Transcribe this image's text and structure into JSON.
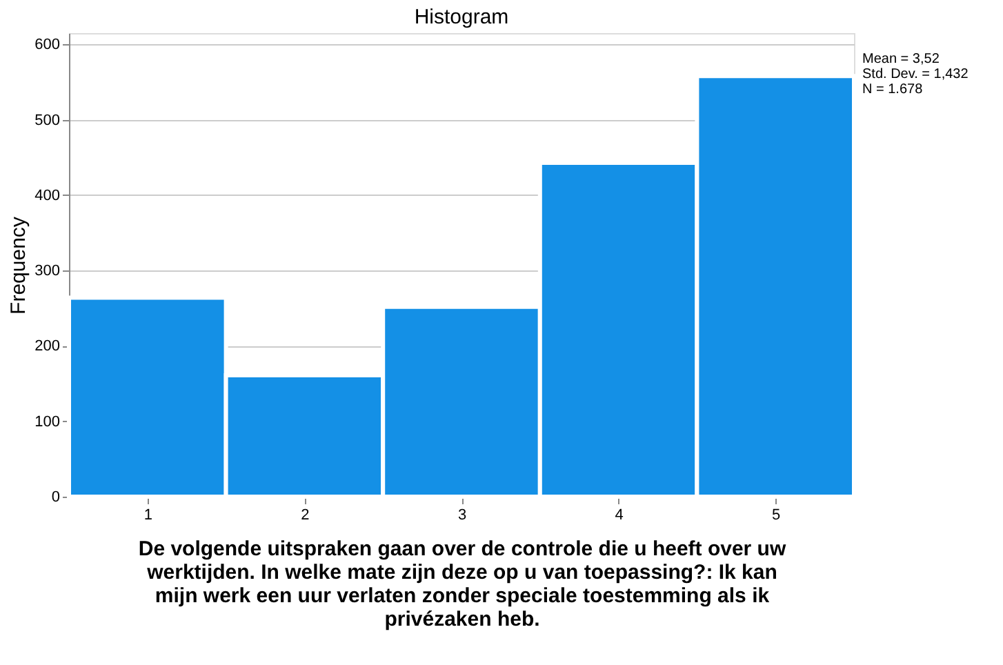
{
  "chart_data": {
    "type": "histogram",
    "title": "Histogram",
    "xlabel": "De volgende uitspraken gaan over de controle die u heeft over uw werktijden. In welke mate zijn deze op u van toepassing?: Ik kan mijn werk een uur verlaten zonder speciale toestemming als ik privézaken heb.",
    "ylabel": "Frequency",
    "bins": [
      0.5,
      1.5,
      2.5,
      3.5,
      4.5,
      5.5
    ],
    "values": [
      264,
      161,
      252,
      443,
      558
    ],
    "color": "#1490e6",
    "xlim": [
      0.5,
      5.5
    ],
    "xticks": [
      1,
      2,
      3,
      4,
      5
    ],
    "ylim": [
      0,
      615
    ],
    "yticks": [
      0,
      100,
      200,
      300,
      400,
      500,
      600
    ],
    "grid": "y",
    "annotations": [
      "Mean = 3,52",
      "Std. Dev. = 1,432",
      "N = 1.678"
    ]
  }
}
